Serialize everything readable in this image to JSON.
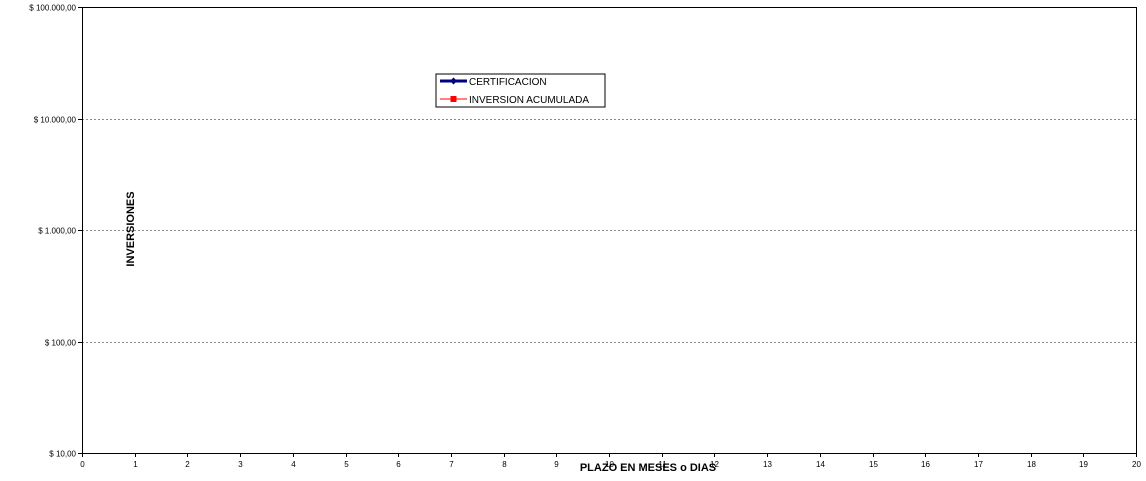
{
  "chart_data": {
    "type": "line",
    "title": "",
    "xlabel": "PLAZO EN MESES o DIAS",
    "ylabel": "INVERSIONES",
    "x_ticks": [
      0,
      1,
      2,
      3,
      4,
      5,
      6,
      7,
      8,
      9,
      10,
      11,
      12,
      13,
      14,
      15,
      16,
      17,
      18,
      19,
      20
    ],
    "xlim": [
      0,
      20
    ],
    "y_scale": "log",
    "ylim": [
      10,
      100000
    ],
    "y_ticks": [
      10,
      100,
      1000,
      10000,
      100000
    ],
    "y_tick_labels": [
      "$ 10,00",
      "$ 100,00",
      "$ 1.000,00",
      "$ 10.000,00",
      "$ 100.000,00"
    ],
    "grid": "horizontal-dashed",
    "legend_position": "top-center",
    "series": [
      {
        "name": "CERTIFICACION",
        "color": "#000080",
        "marker": "diamond",
        "x": [],
        "values": []
      },
      {
        "name": "INVERSION ACUMULADA",
        "color": "#ff0000",
        "marker": "square",
        "x": [],
        "values": []
      }
    ]
  }
}
